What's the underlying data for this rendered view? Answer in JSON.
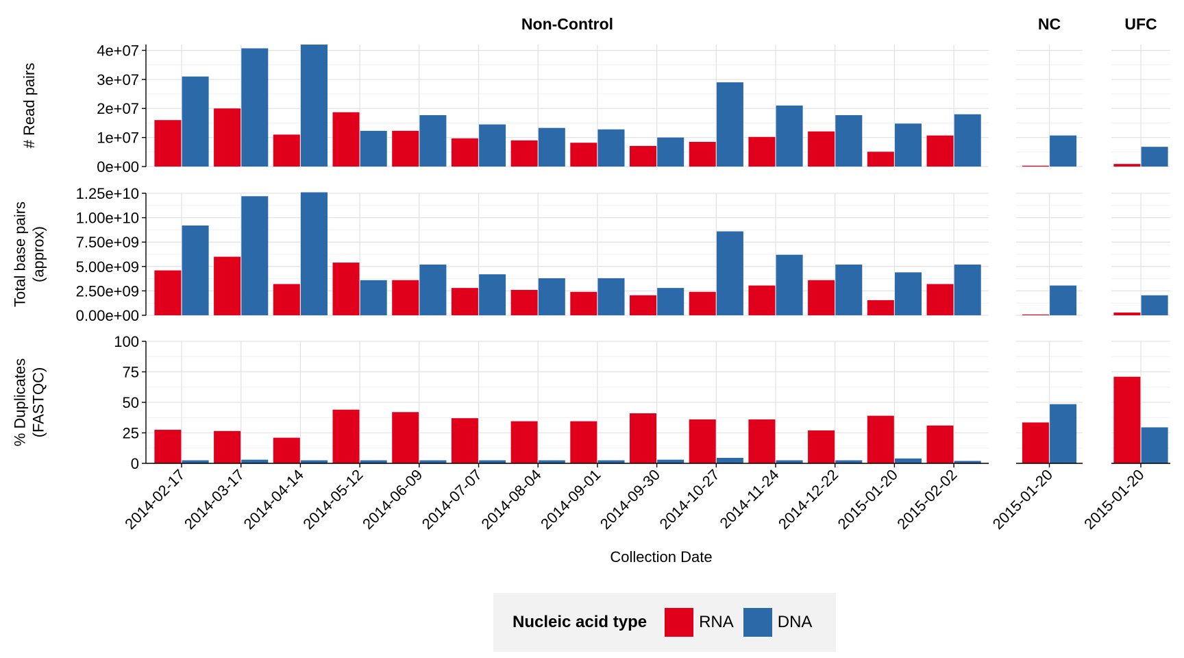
{
  "chart_data": {
    "type": "bar",
    "title": "",
    "xlabel": "Collection Date",
    "facets": [
      {
        "name": "Non-Control",
        "categories": [
          "2014-02-17",
          "2014-03-17",
          "2014-04-14",
          "2014-05-12",
          "2014-06-09",
          "2014-07-07",
          "2014-08-04",
          "2014-09-01",
          "2014-09-30",
          "2014-10-27",
          "2014-11-24",
          "2014-12-22",
          "2015-01-20",
          "2015-02-02"
        ]
      },
      {
        "name": "NC",
        "categories": [
          "2015-01-20"
        ]
      },
      {
        "name": "UFC",
        "categories": [
          "2015-01-20"
        ]
      }
    ],
    "legend": {
      "title": "Nucleic acid type",
      "position": "bottom",
      "entries": [
        {
          "name": "RNA",
          "color": "#e0001b"
        },
        {
          "name": "DNA",
          "color": "#2b69a8"
        }
      ]
    },
    "grid": true,
    "rows": [
      {
        "ylabel": [
          "# Read pairs"
        ],
        "ylim": [
          0,
          42000000
        ],
        "yticks": [
          0,
          10000000,
          20000000,
          30000000,
          40000000
        ],
        "ytick_labels": [
          "0e+00",
          "1e+07",
          "2e+07",
          "3e+07",
          "4e+07"
        ],
        "series": [
          {
            "name": "RNA",
            "facet_values": [
              [
                16000000,
                20000000,
                11000000,
                18700000,
                12300000,
                9700000,
                9000000,
                8200000,
                7100000,
                8500000,
                10200000,
                12100000,
                5100000,
                10700000
              ],
              [
                300000
              ],
              [
                900000
              ]
            ]
          },
          {
            "name": "DNA",
            "facet_values": [
              [
                31000000,
                40700000,
                42000000,
                12300000,
                17700000,
                14500000,
                13300000,
                12800000,
                10000000,
                29000000,
                21000000,
                17700000,
                14800000,
                18000000
              ],
              [
                10700000
              ],
              [
                6800000
              ]
            ]
          }
        ]
      },
      {
        "ylabel": [
          "Total base pairs",
          "(approx)"
        ],
        "ylim": [
          0,
          12500000000
        ],
        "yticks": [
          0,
          2500000000,
          5000000000,
          7500000000,
          10000000000,
          12500000000
        ],
        "ytick_labels": [
          "0.00e+00",
          "2.50e+09",
          "5.00e+09",
          "7.50e+09",
          "1.00e+10",
          "1.25e+10"
        ],
        "series": [
          {
            "name": "RNA",
            "facet_values": [
              [
                4600000000,
                6000000000,
                3200000000,
                5400000000,
                3600000000,
                2800000000,
                2600000000,
                2400000000,
                2050000000,
                2400000000,
                3050000000,
                3600000000,
                1550000000,
                3200000000
              ],
              [
                80000000
              ],
              [
                280000000
              ]
            ]
          },
          {
            "name": "DNA",
            "facet_values": [
              [
                9200000000,
                12200000000,
                12600000000,
                3600000000,
                5200000000,
                4200000000,
                3800000000,
                3800000000,
                2800000000,
                8600000000,
                6200000000,
                5200000000,
                4400000000,
                5200000000
              ],
              [
                3050000000
              ],
              [
                2050000000
              ]
            ]
          }
        ]
      },
      {
        "ylabel": [
          "% Duplicates",
          "(FASTQC)"
        ],
        "ylim": [
          0,
          100
        ],
        "yticks": [
          0,
          25,
          50,
          75,
          100
        ],
        "ytick_labels": [
          "0",
          "25",
          "50",
          "75",
          "100"
        ],
        "series": [
          {
            "name": "RNA",
            "facet_values": [
              [
                27.5,
                26.5,
                21,
                44,
                42,
                37,
                34.5,
                34.5,
                41,
                36,
                36,
                27,
                39,
                31
              ],
              [
                33.5
              ],
              [
                71
              ]
            ]
          },
          {
            "name": "DNA",
            "facet_values": [
              [
                2.5,
                3,
                2.5,
                2.5,
                2.5,
                2.5,
                2.5,
                2.5,
                3,
                4.5,
                2.5,
                2.5,
                4,
                2
              ],
              [
                48.5
              ],
              [
                29.5
              ]
            ]
          }
        ]
      }
    ]
  }
}
